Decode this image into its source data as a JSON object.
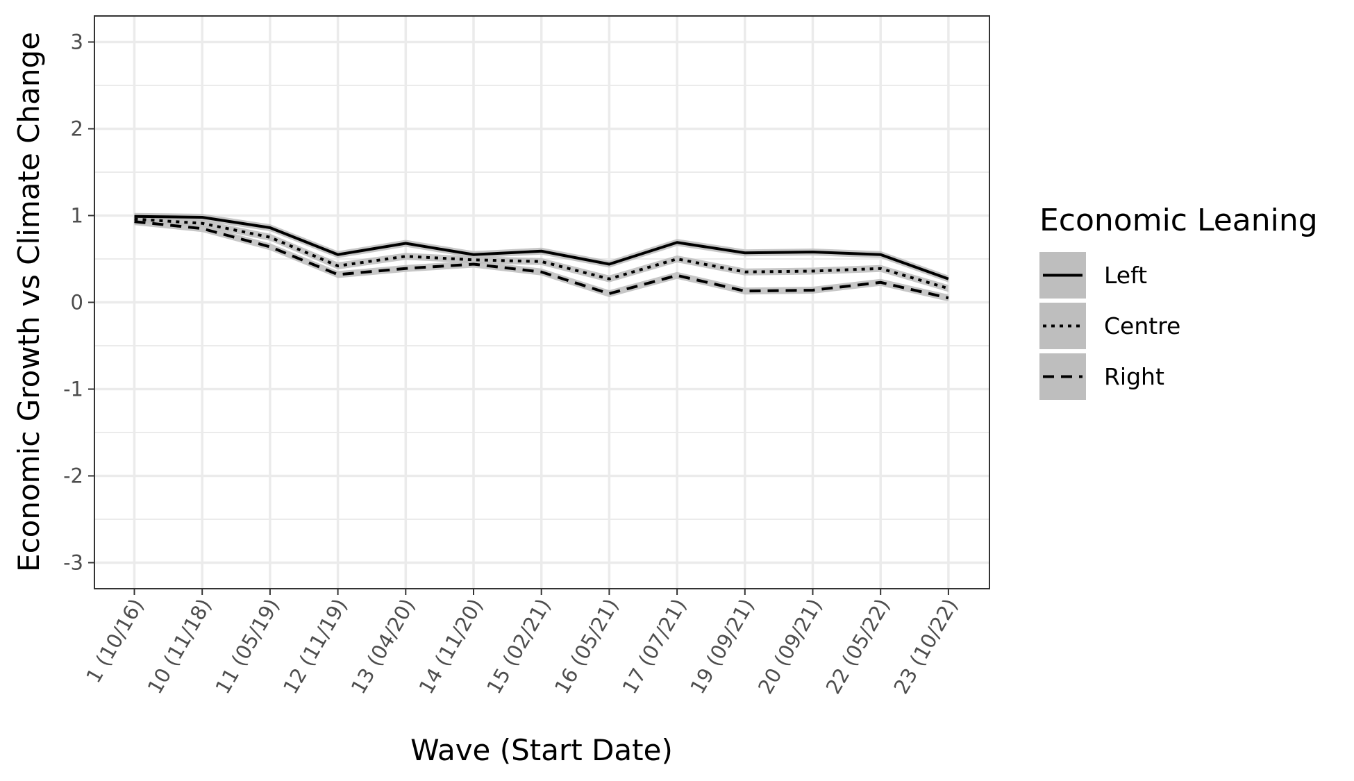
{
  "chart_data": {
    "type": "line",
    "xlabel": "Wave (Start Date)",
    "ylabel": "Economic Growth vs Climate Change",
    "categories": [
      "1 (10/16)",
      "10 (11/18)",
      "11 (05/19)",
      "12 (11/19)",
      "13 (04/20)",
      "14 (11/20)",
      "15 (02/21)",
      "16 (05/21)",
      "17 (07/21)",
      "19 (09/21)",
      "20 (09/21)",
      "22 (05/22)",
      "23 (10/22)"
    ],
    "ylim": [
      -3.3,
      3.3
    ],
    "yticks": [
      -3,
      -2,
      -1,
      0,
      1,
      2,
      3
    ],
    "ytick_labels": [
      "-3",
      "-2",
      "-1",
      "0",
      "1",
      "2",
      "3"
    ],
    "grid": true,
    "legend": {
      "title": "Economic Leaning",
      "placement": "right"
    },
    "series": [
      {
        "name": "Left",
        "linetype": "solid",
        "values": [
          0.99,
          0.98,
          0.86,
          0.55,
          0.68,
          0.55,
          0.59,
          0.44,
          0.69,
          0.57,
          0.58,
          0.55,
          0.27
        ]
      },
      {
        "name": "Centre",
        "linetype": "dotted",
        "values": [
          0.96,
          0.91,
          0.75,
          0.42,
          0.53,
          0.49,
          0.47,
          0.27,
          0.5,
          0.35,
          0.36,
          0.39,
          0.16
        ]
      },
      {
        "name": "Right",
        "linetype": "dashed",
        "values": [
          0.93,
          0.85,
          0.64,
          0.32,
          0.39,
          0.44,
          0.35,
          0.1,
          0.31,
          0.13,
          0.14,
          0.23,
          0.05
        ]
      }
    ],
    "colors": {
      "line": "#000000",
      "ribbon": "#bdbdbd",
      "grid": "#ebebeb",
      "panel_border": "#333333",
      "legend_key": "#bebebe"
    }
  }
}
